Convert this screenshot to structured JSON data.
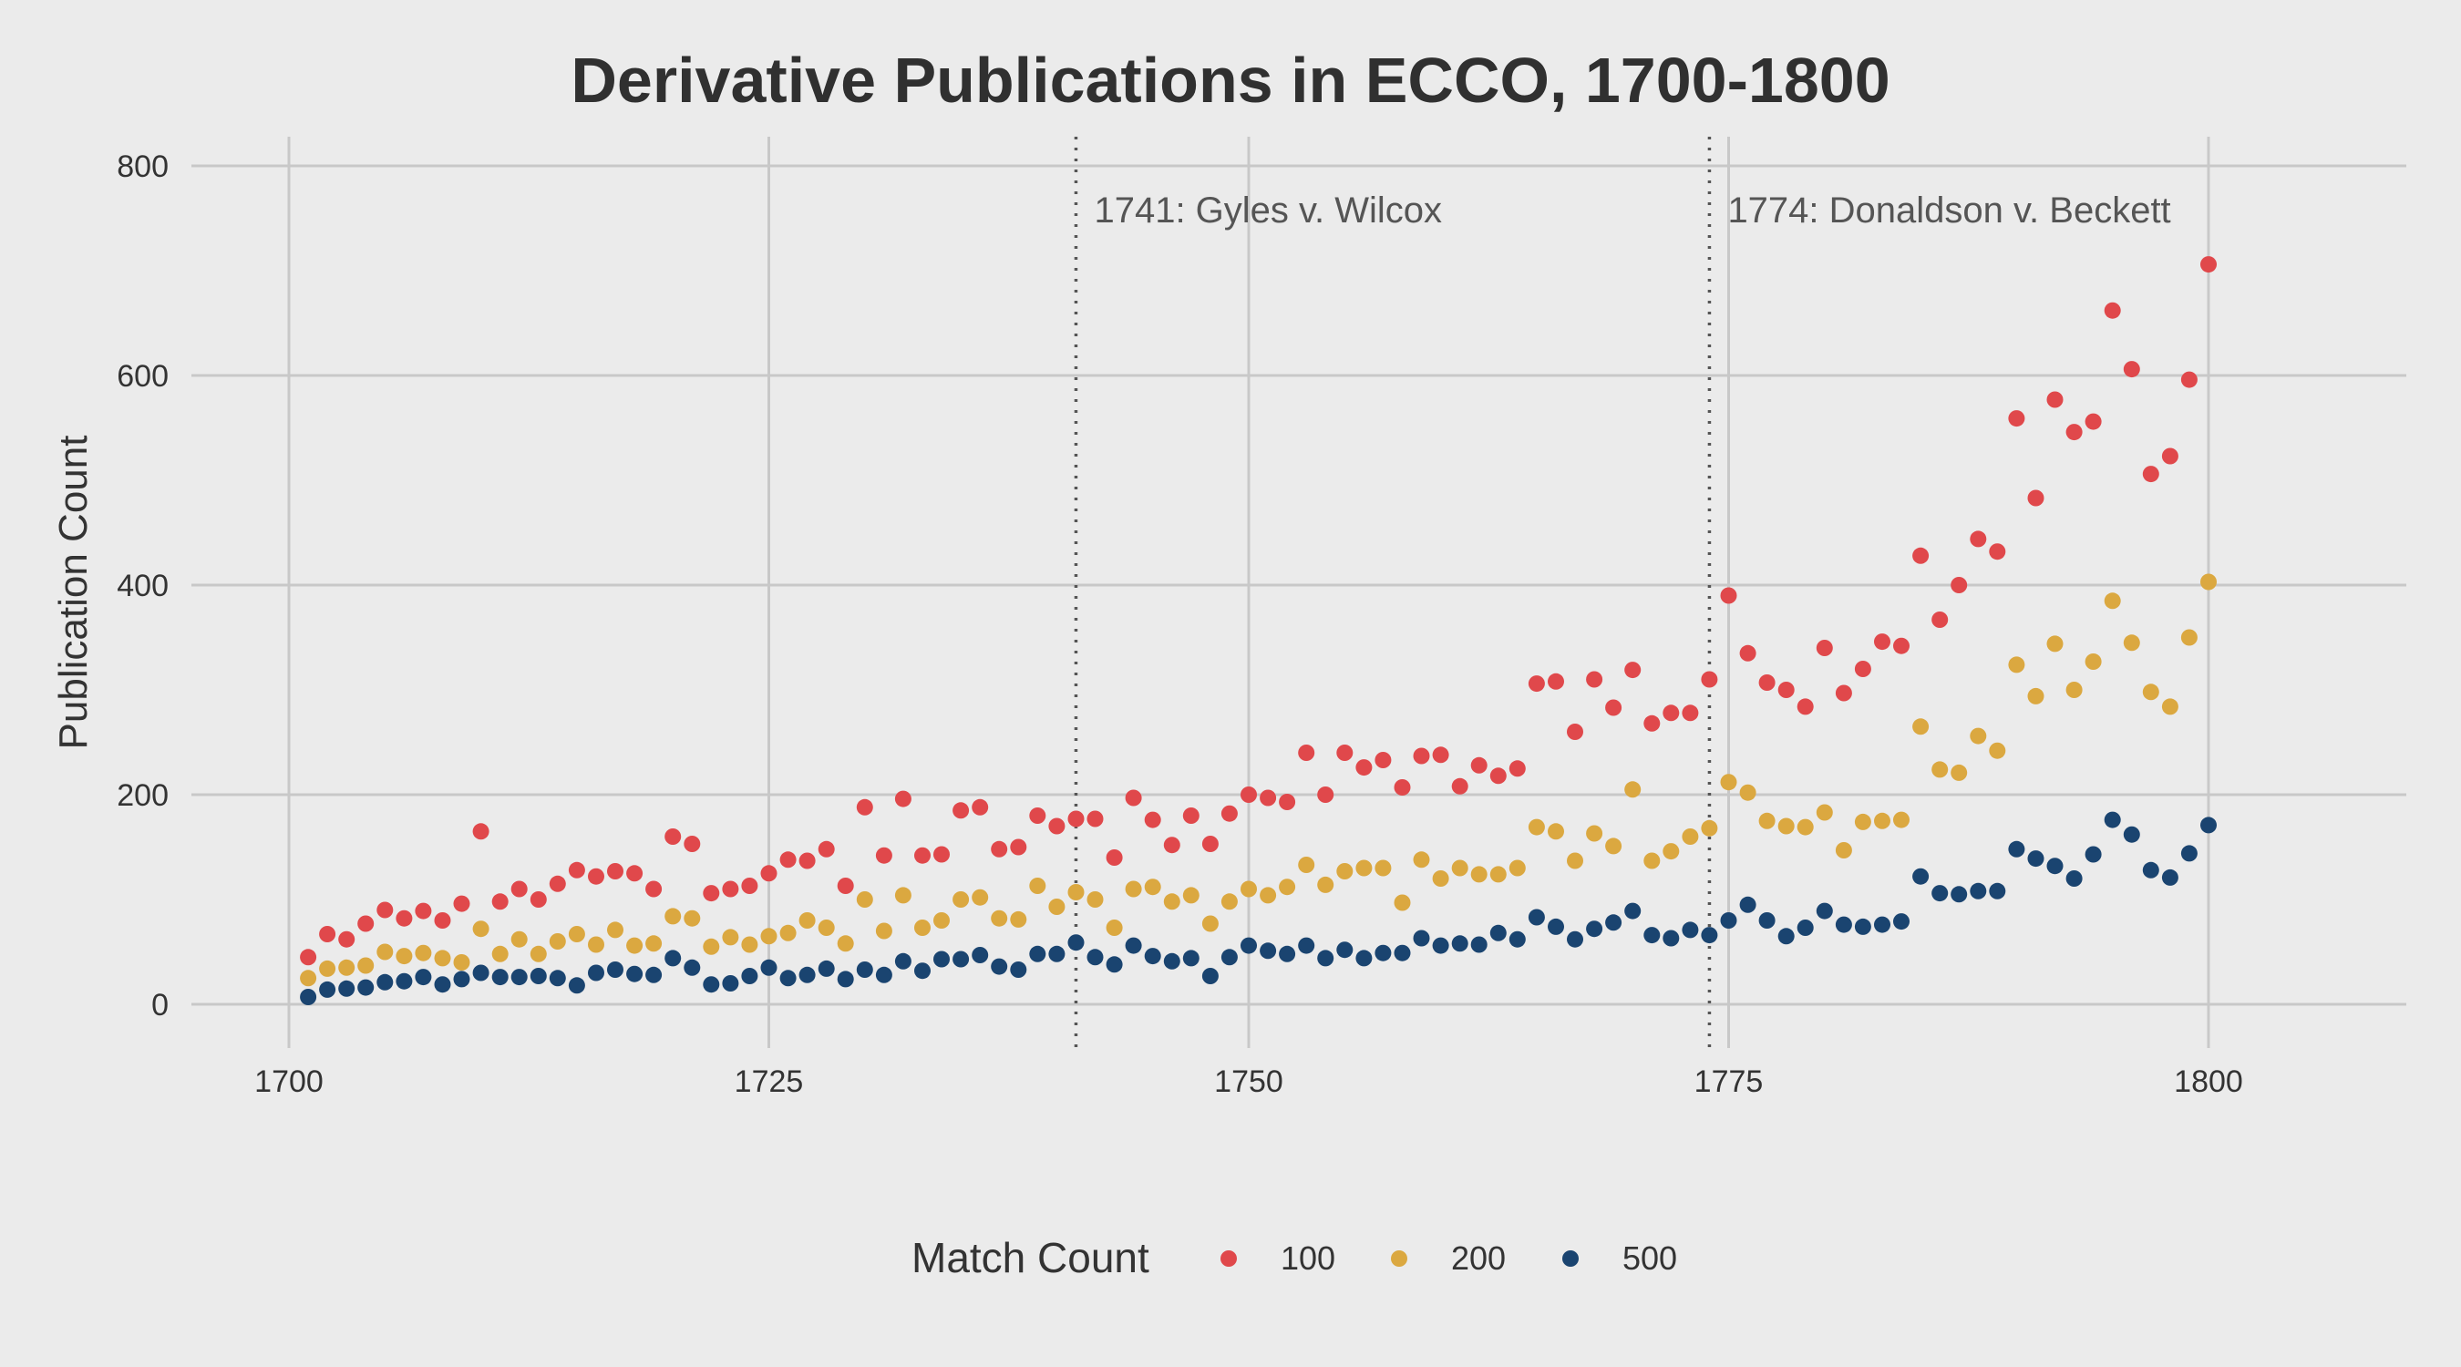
{
  "chart_data": {
    "type": "scatter",
    "title": "Derivative Publications in ECCO, 1700-1800",
    "xlabel": "",
    "ylabel": "Publication Count",
    "xlim": [
      1690,
      1810
    ],
    "ylim": [
      -35,
      830
    ],
    "x_ticks": [
      1700,
      1725,
      1750,
      1775,
      1800
    ],
    "y_ticks": [
      0,
      200,
      400,
      600,
      800
    ],
    "grid": true,
    "legend": {
      "title": "Match Count",
      "position": "bottom"
    },
    "annotations": [
      {
        "x": 1741,
        "label": "1741: Gyles v. Wilcox"
      },
      {
        "x": 1774,
        "label": "1774: Donaldson v. Beckett"
      }
    ],
    "x": [
      1701,
      1702,
      1703,
      1704,
      1705,
      1706,
      1707,
      1708,
      1709,
      1710,
      1711,
      1712,
      1713,
      1714,
      1715,
      1716,
      1717,
      1718,
      1719,
      1720,
      1721,
      1722,
      1723,
      1724,
      1725,
      1726,
      1727,
      1728,
      1729,
      1730,
      1731,
      1732,
      1733,
      1734,
      1735,
      1736,
      1737,
      1738,
      1739,
      1740,
      1741,
      1742,
      1743,
      1744,
      1745,
      1746,
      1747,
      1748,
      1749,
      1750,
      1751,
      1752,
      1753,
      1754,
      1755,
      1756,
      1757,
      1758,
      1759,
      1760,
      1761,
      1762,
      1763,
      1764,
      1765,
      1766,
      1767,
      1768,
      1769,
      1770,
      1771,
      1772,
      1773,
      1774,
      1775,
      1776,
      1777,
      1778,
      1779,
      1780,
      1781,
      1782,
      1783,
      1784,
      1785,
      1786,
      1787,
      1788,
      1789,
      1790,
      1791,
      1792,
      1793,
      1794,
      1795,
      1796,
      1797,
      1798,
      1799,
      1800
    ],
    "series": [
      {
        "name": "100",
        "color": "#e0484b",
        "values": [
          45,
          67,
          62,
          77,
          90,
          82,
          89,
          80,
          96,
          165,
          98,
          110,
          100,
          115,
          128,
          122,
          127,
          125,
          110,
          160,
          153,
          106,
          110,
          113,
          125,
          138,
          137,
          148,
          113,
          188,
          142,
          196,
          142,
          143,
          185,
          188,
          148,
          150,
          180,
          170,
          177,
          177,
          140,
          197,
          176,
          152,
          180,
          153,
          182,
          200,
          197,
          193,
          240,
          200,
          240,
          226,
          233,
          207,
          237,
          238,
          208,
          228,
          218,
          225,
          306,
          308,
          260,
          310,
          283,
          319,
          268,
          278,
          278,
          310,
          390,
          335,
          307,
          300,
          284,
          340,
          297,
          320,
          346,
          342,
          428,
          367,
          400,
          444,
          432,
          559,
          483,
          577,
          546,
          556,
          662,
          606,
          506,
          523,
          596,
          706
        ]
      },
      {
        "name": "200",
        "color": "#dba840",
        "values": [
          25,
          34,
          35,
          37,
          50,
          46,
          49,
          44,
          40,
          72,
          48,
          62,
          48,
          60,
          67,
          57,
          71,
          56,
          58,
          84,
          82,
          55,
          64,
          57,
          65,
          68,
          80,
          73,
          58,
          100,
          70,
          104,
          73,
          80,
          100,
          102,
          82,
          81,
          113,
          93,
          107,
          100,
          73,
          110,
          112,
          98,
          104,
          77,
          98,
          110,
          104,
          112,
          133,
          114,
          127,
          130,
          130,
          97,
          138,
          120,
          130,
          124,
          124,
          130,
          169,
          165,
          137,
          163,
          151,
          205,
          137,
          146,
          160,
          168,
          212,
          202,
          175,
          170,
          169,
          183,
          147,
          174,
          175,
          176,
          265,
          224,
          221,
          256,
          242,
          324,
          294,
          344,
          300,
          327,
          385,
          345,
          298,
          284,
          350,
          403
        ]
      },
      {
        "name": "500",
        "color": "#1a4470",
        "values": [
          7,
          14,
          15,
          16,
          21,
          22,
          26,
          19,
          24,
          30,
          26,
          26,
          27,
          25,
          18,
          30,
          33,
          29,
          28,
          44,
          35,
          19,
          20,
          27,
          35,
          25,
          28,
          34,
          24,
          33,
          28,
          41,
          32,
          43,
          43,
          47,
          36,
          33,
          48,
          48,
          59,
          45,
          38,
          56,
          46,
          41,
          44,
          27,
          45,
          56,
          51,
          48,
          56,
          44,
          52,
          44,
          49,
          49,
          63,
          56,
          58,
          57,
          68,
          62,
          83,
          74,
          62,
          72,
          78,
          89,
          66,
          63,
          71,
          66,
          80,
          95,
          80,
          65,
          73,
          89,
          76,
          74,
          76,
          79,
          122,
          106,
          105,
          108,
          108,
          148,
          139,
          132,
          120,
          143,
          176,
          162,
          128,
          121,
          144,
          171
        ]
      }
    ]
  }
}
